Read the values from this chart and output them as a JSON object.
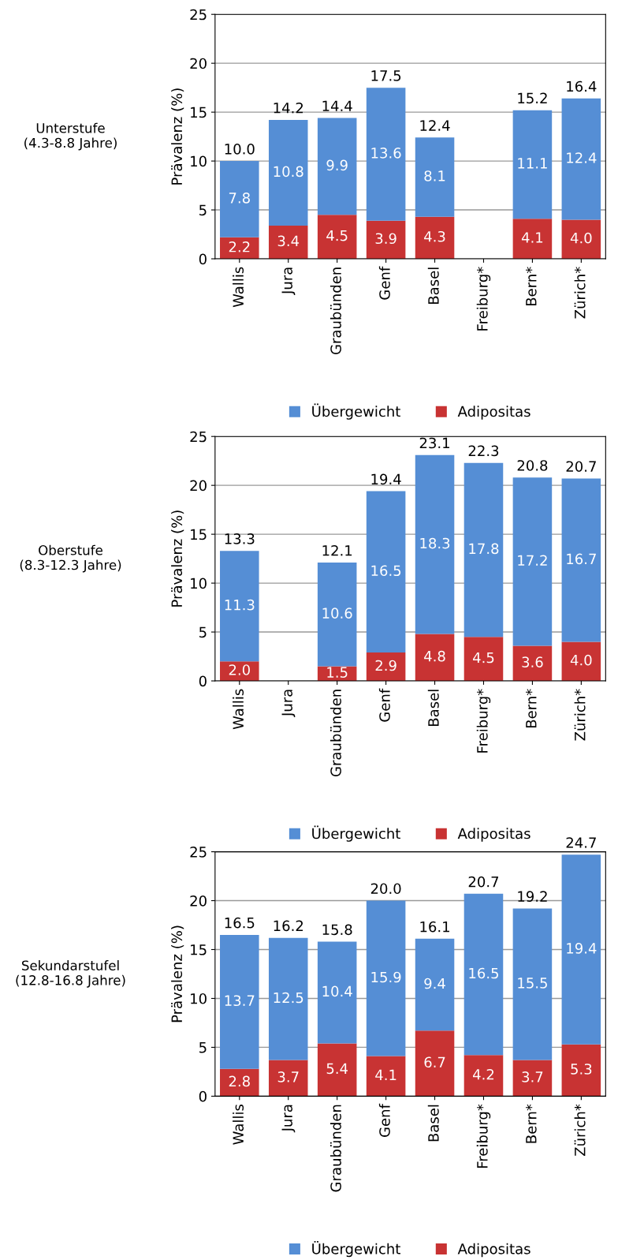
{
  "chart_data": [
    {
      "type": "bar",
      "title": "Unterstufe\n(4.3-8.8 Jahre)",
      "ylabel": "Prävalenz (%)",
      "categories": [
        "Wallis",
        "Jura",
        "Graubünden",
        "Genf",
        "Basel",
        "Freiburg*",
        "Bern*",
        "Zürich*"
      ],
      "stacked": true,
      "ylim": [
        0,
        25
      ],
      "yticks": [
        0,
        5,
        10,
        15,
        20,
        25
      ],
      "grid": "y",
      "legend": "bottom",
      "series": [
        {
          "name": "Adipositas",
          "color": "#c83333",
          "values": [
            2.2,
            3.4,
            4.5,
            3.9,
            4.3,
            null,
            4.1,
            4.0
          ],
          "value_labels": [
            "2.2",
            "3.4",
            "4.5",
            "3.9",
            "4.3",
            null,
            "4.1",
            "4.0"
          ]
        },
        {
          "name": "Übergewicht",
          "color": "#558ed5",
          "values": [
            7.8,
            10.8,
            9.9,
            13.6,
            8.1,
            null,
            11.1,
            12.4
          ],
          "value_labels": [
            "7.8",
            "10.8",
            "9.9",
            "13.6",
            "8.1",
            null,
            "11.1",
            "12.4"
          ]
        }
      ],
      "totals": [
        "10.0",
        "14.2",
        "14.4",
        "17.5",
        "12.4",
        null,
        "15.2",
        "16.4"
      ]
    },
    {
      "type": "bar",
      "title": "Oberstufe\n(8.3-12.3 Jahre)",
      "ylabel": "Prävalenz (%)",
      "categories": [
        "Wallis",
        "Jura",
        "Graubünden",
        "Genf",
        "Basel",
        "Freiburg*",
        "Bern*",
        "Zürich*"
      ],
      "stacked": true,
      "ylim": [
        0,
        25
      ],
      "yticks": [
        0,
        5,
        10,
        15,
        20,
        25
      ],
      "grid": "y",
      "legend": "bottom",
      "series": [
        {
          "name": "Adipositas",
          "color": "#c83333",
          "values": [
            2.0,
            null,
            1.5,
            2.9,
            4.8,
            4.5,
            3.6,
            4.0
          ],
          "value_labels": [
            "2.0",
            null,
            "1.5",
            "2.9",
            "4.8",
            "4.5",
            "3.6",
            "4.0"
          ]
        },
        {
          "name": "Übergewicht",
          "color": "#558ed5",
          "values": [
            11.3,
            null,
            10.6,
            16.5,
            18.3,
            17.8,
            17.2,
            16.7
          ],
          "value_labels": [
            "11.3",
            null,
            "10.6",
            "16.5",
            "18.3",
            "17.8",
            "17.2",
            "16.7"
          ]
        }
      ],
      "totals": [
        "13.3",
        null,
        "12.1",
        "19.4",
        "23.1",
        "22.3",
        "20.8",
        "20.7"
      ]
    },
    {
      "type": "bar",
      "title": "Sekundarstufel\n(12.8-16.8 Jahre)",
      "ylabel": "Prävalenz (%)",
      "categories": [
        "Wallis",
        "Jura",
        "Graubünden",
        "Genf",
        "Basel",
        "Freiburg*",
        "Bern*",
        "Zürich*"
      ],
      "stacked": true,
      "ylim": [
        0,
        25
      ],
      "yticks": [
        0,
        5,
        10,
        15,
        20,
        25
      ],
      "grid": "y",
      "legend": "bottom",
      "series": [
        {
          "name": "Adipositas",
          "color": "#c83333",
          "values": [
            2.8,
            3.7,
            5.4,
            4.1,
            6.7,
            4.2,
            3.7,
            5.3
          ],
          "value_labels": [
            "2.8",
            "3.7",
            "5.4",
            "4.1",
            "6.7",
            "4.2",
            "3.7",
            "5.3"
          ]
        },
        {
          "name": "Übergewicht",
          "color": "#558ed5",
          "values": [
            13.7,
            12.5,
            10.4,
            15.9,
            9.4,
            16.5,
            15.5,
            19.4
          ],
          "value_labels": [
            "13.7",
            "12.5",
            "10.4",
            "15.9",
            "9.4",
            "16.5",
            "15.5",
            "19.4"
          ]
        }
      ],
      "totals": [
        "16.5",
        "16.2",
        "15.8",
        "20.0",
        "16.1",
        "20.7",
        "19.2",
        "24.7"
      ]
    }
  ]
}
